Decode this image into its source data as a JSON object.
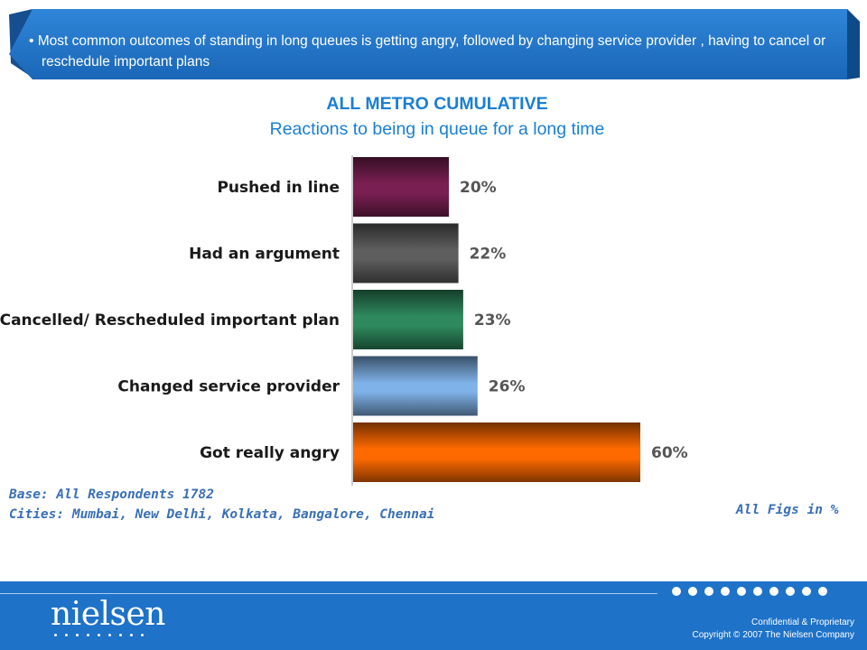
{
  "banner": {
    "text": "• Most common outcomes of standing in long queues is getting angry, followed by changing service provider , having to cancel or reschedule important plans"
  },
  "notes": {
    "base": "Base: All Respondents 1782",
    "cities": "Cities: Mumbai, New Delhi, Kolkata, Bangalore, Chennai",
    "units": "All Figs in %"
  },
  "footer": {
    "logo": "nielsen",
    "confidential": "Confidential & Proprietary",
    "copyright": "Copyright © 2007 The Nielsen Company"
  },
  "colors": {
    "banner": "#1e72c8",
    "footer": "#1e72c8",
    "title": "#1a7fd4",
    "bars": [
      "#7a1f52",
      "#5e5e5e",
      "#2e8a5e",
      "#7fb2e8",
      "#ff6a00"
    ]
  },
  "chart_data": {
    "type": "bar",
    "orientation": "horizontal",
    "title": "ALL METRO CUMULATIVE",
    "subtitle": "Reactions to being in queue for a long time",
    "categories": [
      "Pushed in line",
      "Had an argument",
      "Cancelled/ Rescheduled important plan",
      "Changed service provider",
      "Got really angry"
    ],
    "values": [
      20,
      22,
      23,
      26,
      60
    ],
    "value_labels": [
      "20%",
      "22%",
      "23%",
      "26%",
      "60%"
    ],
    "xlim": [
      0,
      100
    ],
    "grid": false,
    "legend": "none"
  }
}
